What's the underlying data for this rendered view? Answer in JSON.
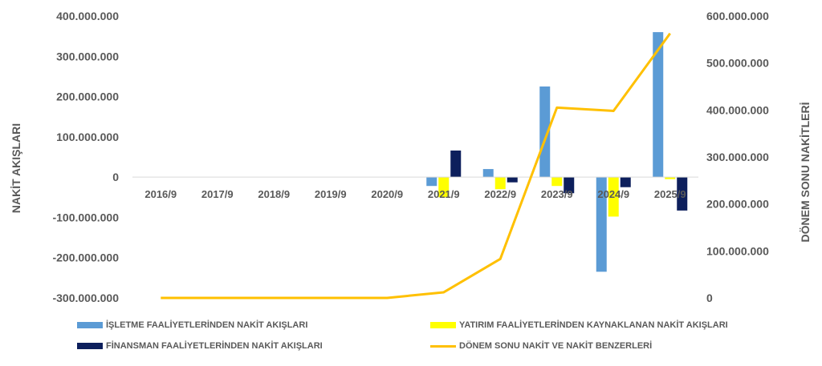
{
  "chart_data": {
    "type": "bar",
    "categories": [
      "2016/9",
      "2017/9",
      "2018/9",
      "2019/9",
      "2020/9",
      "2021/9",
      "2022/9",
      "2023/9",
      "2024/9",
      "2025/9"
    ],
    "series": [
      {
        "name": "İŞLETME FAALİYETLERİNDEN NAKİT AKIŞLARI",
        "type": "bar",
        "axis": "left",
        "color": "#5B9BD5",
        "values": [
          0,
          0,
          0,
          0,
          0,
          -22000000,
          20000000,
          225000000,
          -235000000,
          360000000
        ]
      },
      {
        "name": "YATIRIM FAALİYETLERİNDEN KAYNAKLANAN NAKİT AKIŞLARI",
        "type": "bar",
        "axis": "left",
        "color": "#FFFF00",
        "values": [
          0,
          0,
          0,
          0,
          0,
          -50000000,
          -30000000,
          -22000000,
          -98000000,
          -5000000
        ]
      },
      {
        "name": "FİNANSMAN FAALİYETLERİNDEN NAKİT AKIŞLARI",
        "type": "bar",
        "axis": "left",
        "color": "#0D1F5C",
        "values": [
          0,
          0,
          0,
          0,
          0,
          66000000,
          -13000000,
          -40000000,
          -25000000,
          -83000000
        ]
      },
      {
        "name": "DÖNEM SONU NAKİT VE NAKİT BENZERLERİ",
        "type": "line",
        "axis": "right",
        "color": "#FFC000",
        "values": [
          0,
          0,
          0,
          0,
          0,
          12000000,
          83000000,
          405000000,
          398000000,
          563000000
        ]
      }
    ],
    "ylabel": "NAKİT AKIŞLARI",
    "y2label": "DÖNEM SONU NAKİTLERİ",
    "ylim": [
      -300000000,
      400000000
    ],
    "y2lim": [
      0,
      600000000
    ],
    "yticks": [
      "400.000.000",
      "300.000.000",
      "200.000.000",
      "100.000.000",
      "0",
      "-100.000.000",
      "-200.000.000",
      "-300.000.000"
    ],
    "y2ticks": [
      "600.000.000",
      "500.000.000",
      "400.000.000",
      "300.000.000",
      "200.000.000",
      "100.000.000",
      "0"
    ],
    "grid": false,
    "legend_position": "bottom"
  }
}
